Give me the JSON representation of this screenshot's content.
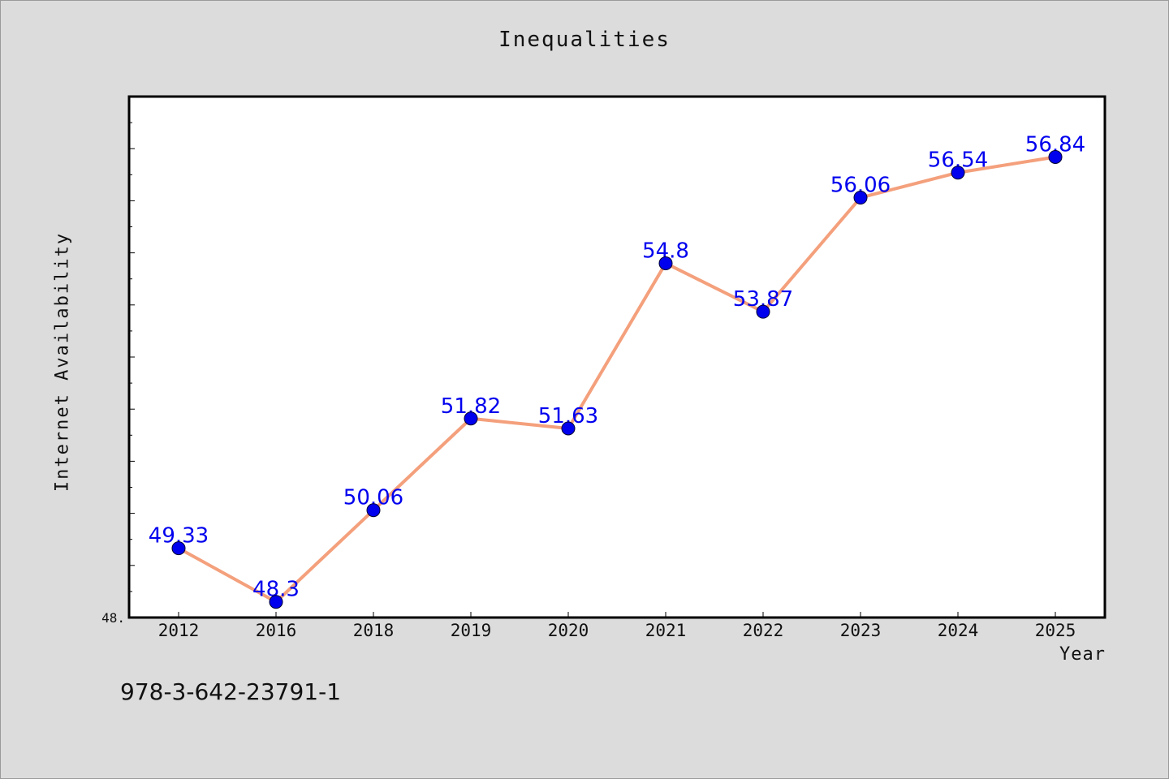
{
  "chart_data": {
    "type": "line",
    "title": "Inequalities",
    "xlabel": "Year",
    "ylabel": "Internet Availability",
    "categories": [
      "2012",
      "2016",
      "2018",
      "2019",
      "2020",
      "2021",
      "2022",
      "2023",
      "2024",
      "2025"
    ],
    "series": [
      {
        "values": [
          49.33,
          48.3,
          50.06,
          51.82,
          51.63,
          54.8,
          53.87,
          56.06,
          56.54,
          56.84
        ],
        "labels": [
          "49.33",
          "48.3",
          "50.06",
          "51.82",
          "51.63",
          "54.8",
          "53.87",
          "56.06",
          "56.54",
          "56.84"
        ],
        "line_color": "#f4a07c",
        "marker_color": "#0000ee"
      }
    ],
    "ylim": [
      48.0,
      58.0
    ],
    "y_tick_labels": [
      {
        "value": 48.0,
        "label": "48."
      }
    ],
    "y_minor_step": 0.5,
    "grid": false,
    "legend": "none",
    "data_label_color": "#0000ee"
  },
  "footer": {
    "code": "978-3-642-23791-1"
  }
}
